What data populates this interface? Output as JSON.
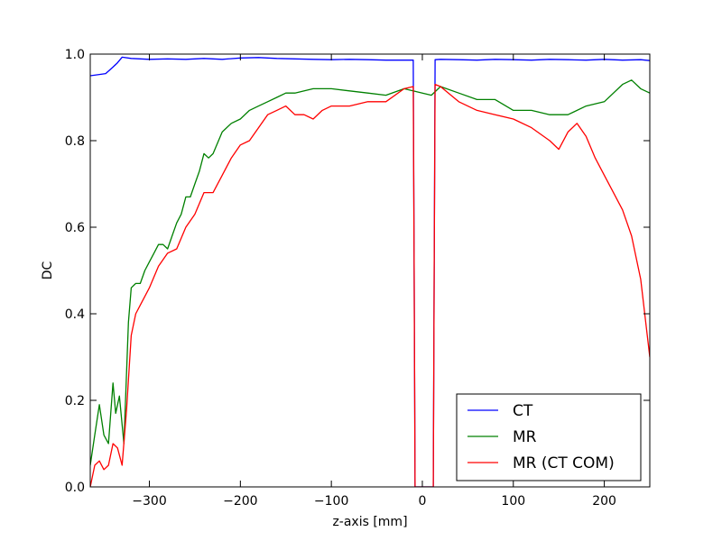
{
  "chart_data": {
    "type": "line",
    "title": "",
    "xlabel": "z-axis [mm]",
    "ylabel": "DC",
    "xlim": [
      -365,
      250
    ],
    "ylim": [
      0.0,
      1.0
    ],
    "xticks": [
      -300,
      -200,
      -100,
      0,
      100,
      200
    ],
    "xtick_labels": [
      "−300",
      "−200",
      "−100",
      "0",
      "100",
      "200"
    ],
    "yticks": [
      0.0,
      0.2,
      0.4,
      0.6,
      0.8,
      1.0
    ],
    "ytick_labels": [
      "0.0",
      "0.2",
      "0.4",
      "0.6",
      "0.8",
      "1.0"
    ],
    "grid": false,
    "legend_position": "lower-right",
    "series": [
      {
        "name": "CT",
        "color": "#0000ff",
        "x": [
          -365,
          -355,
          -348,
          -340,
          -335,
          -330,
          -320,
          -300,
          -280,
          -260,
          -240,
          -220,
          -200,
          -180,
          -160,
          -140,
          -120,
          -100,
          -80,
          -60,
          -40,
          -20,
          -10,
          -9,
          -8,
          12,
          13,
          14,
          20,
          40,
          60,
          80,
          100,
          120,
          140,
          160,
          180,
          200,
          220,
          240,
          250
        ],
        "values": [
          0.95,
          0.953,
          0.955,
          0.97,
          0.98,
          0.993,
          0.99,
          0.988,
          0.989,
          0.988,
          0.99,
          0.988,
          0.991,
          0.992,
          0.99,
          0.989,
          0.988,
          0.987,
          0.988,
          0.987,
          0.986,
          0.986,
          0.986,
          0.5,
          0.0,
          0.0,
          0.5,
          0.987,
          0.988,
          0.987,
          0.986,
          0.988,
          0.987,
          0.986,
          0.988,
          0.987,
          0.986,
          0.988,
          0.986,
          0.987,
          0.985
        ]
      },
      {
        "name": "MR",
        "color": "#008000",
        "x": [
          -365,
          -360,
          -355,
          -350,
          -345,
          -340,
          -337,
          -333,
          -328,
          -323,
          -320,
          -315,
          -310,
          -305,
          -300,
          -295,
          -290,
          -285,
          -280,
          -275,
          -270,
          -265,
          -260,
          -255,
          -250,
          -245,
          -240,
          -235,
          -230,
          -220,
          -210,
          -200,
          -190,
          -180,
          -170,
          -160,
          -150,
          -140,
          -120,
          -100,
          -80,
          -60,
          -40,
          -20,
          0,
          10,
          20,
          40,
          60,
          80,
          100,
          120,
          140,
          160,
          180,
          200,
          220,
          230,
          240,
          250
        ],
        "values": [
          0.05,
          0.12,
          0.19,
          0.12,
          0.1,
          0.24,
          0.17,
          0.21,
          0.1,
          0.38,
          0.46,
          0.47,
          0.47,
          0.5,
          0.52,
          0.54,
          0.56,
          0.56,
          0.55,
          0.58,
          0.61,
          0.63,
          0.67,
          0.67,
          0.7,
          0.73,
          0.77,
          0.76,
          0.77,
          0.82,
          0.84,
          0.85,
          0.87,
          0.88,
          0.89,
          0.9,
          0.91,
          0.91,
          0.92,
          0.92,
          0.915,
          0.91,
          0.905,
          0.92,
          0.91,
          0.905,
          0.925,
          0.91,
          0.895,
          0.895,
          0.87,
          0.87,
          0.86,
          0.86,
          0.88,
          0.89,
          0.93,
          0.94,
          0.92,
          0.91
        ]
      },
      {
        "name": "MR (CT COM)",
        "color": "#ff0000",
        "x": [
          -365,
          -360,
          -355,
          -350,
          -345,
          -340,
          -335,
          -330,
          -325,
          -320,
          -315,
          -310,
          -300,
          -290,
          -280,
          -270,
          -260,
          -250,
          -240,
          -230,
          -220,
          -210,
          -200,
          -190,
          -180,
          -170,
          -160,
          -150,
          -140,
          -130,
          -120,
          -110,
          -100,
          -80,
          -60,
          -40,
          -20,
          -10,
          -9,
          -8,
          12,
          13,
          14,
          20,
          40,
          60,
          80,
          100,
          120,
          140,
          150,
          160,
          170,
          180,
          190,
          200,
          210,
          220,
          230,
          240,
          250
        ],
        "values": [
          0.0,
          0.05,
          0.06,
          0.04,
          0.05,
          0.1,
          0.09,
          0.05,
          0.18,
          0.35,
          0.4,
          0.42,
          0.46,
          0.51,
          0.54,
          0.55,
          0.6,
          0.63,
          0.68,
          0.68,
          0.72,
          0.76,
          0.79,
          0.8,
          0.83,
          0.86,
          0.87,
          0.88,
          0.86,
          0.86,
          0.85,
          0.87,
          0.88,
          0.88,
          0.89,
          0.89,
          0.92,
          0.925,
          0.5,
          0.0,
          0.0,
          0.5,
          0.93,
          0.925,
          0.89,
          0.87,
          0.86,
          0.85,
          0.83,
          0.8,
          0.78,
          0.82,
          0.84,
          0.81,
          0.76,
          0.72,
          0.68,
          0.64,
          0.58,
          0.48,
          0.3
        ]
      }
    ]
  }
}
